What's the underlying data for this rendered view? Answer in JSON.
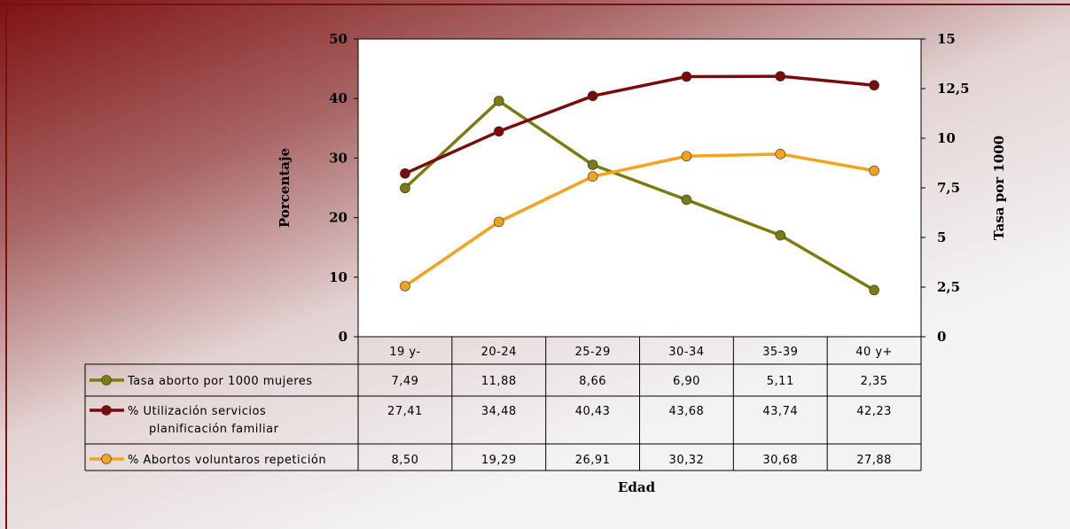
{
  "colors": {
    "border_top": "#7a0f0f",
    "gradient_dark": "#7e1212",
    "series_tasa": "#7b7b0f",
    "series_utilizacion": "#7c0a0a",
    "series_abortos": "#f7a21b"
  },
  "chart_data": {
    "type": "line",
    "categories": [
      "19 y-",
      "20-24",
      "25-29",
      "30-34",
      "35-39",
      "40 y+"
    ],
    "xlabel": "Edad",
    "ylabel": "Porcentaje",
    "y2label": "Tasa por 1000",
    "ylim": [
      0,
      50
    ],
    "y2lim": [
      0,
      15
    ],
    "yticks": [
      "0",
      "10",
      "20",
      "30",
      "40",
      "50"
    ],
    "y2ticks": [
      "0",
      "2,5",
      "5",
      "7,5",
      "10",
      "12,5",
      "15"
    ],
    "grid": false,
    "legend": "data-table-left",
    "series": [
      {
        "name": "Tasa aborto por 1000 mujeres",
        "axis": "right",
        "color": "#7b7b0f",
        "values": [
          7.49,
          11.88,
          8.66,
          6.9,
          5.11,
          2.35
        ],
        "labels": [
          "7,49",
          "11,88",
          "8,66",
          "6,90",
          "5,11",
          "2,35"
        ]
      },
      {
        "name": "% Utilización servicios planificación familiar",
        "axis": "left",
        "color": "#7c0a0a",
        "values": [
          27.41,
          34.48,
          40.43,
          43.68,
          43.74,
          42.23
        ],
        "labels": [
          "27,41",
          "34,48",
          "40,43",
          "43,68",
          "43,74",
          "42,23"
        ]
      },
      {
        "name": "% Abortos voluntaros repetición",
        "axis": "left",
        "color": "#f7a21b",
        "values": [
          8.5,
          19.29,
          26.91,
          30.32,
          30.68,
          27.88
        ],
        "labels": [
          "8,50",
          "19,29",
          "26,91",
          "30,32",
          "30,68",
          "27,88"
        ]
      }
    ]
  }
}
